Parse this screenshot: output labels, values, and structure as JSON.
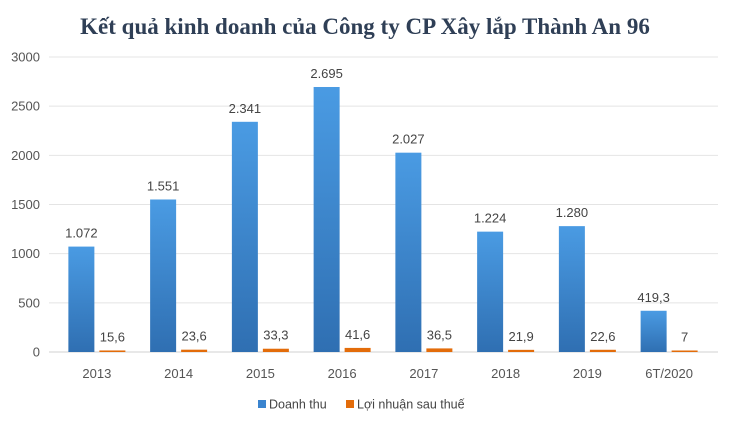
{
  "chart_data": {
    "type": "bar",
    "title": "Kết quả kinh doanh của Công ty CP Xây lắp Thành An 96",
    "xlabel": "",
    "ylabel": "",
    "ylim": [
      0,
      3000
    ],
    "yticks": [
      "0",
      "500",
      "1000",
      "1500",
      "2000",
      "2500",
      "3000"
    ],
    "grid": true,
    "legend_position": "bottom",
    "categories": [
      "2013",
      "2014",
      "2015",
      "2016",
      "2017",
      "2018",
      "2019",
      "6T/2020"
    ],
    "series": [
      {
        "name": "Doanh thu",
        "color": "#3a84cf",
        "values": [
          1072,
          1551,
          2341,
          2695,
          2027,
          1224,
          1280,
          419.3
        ],
        "labels": [
          "1.072",
          "1.551",
          "2.341",
          "2.695",
          "2.027",
          "1.224",
          "1.280",
          "419,3"
        ]
      },
      {
        "name": "Lợi nhuận sau thuế",
        "color": "#e36c0a",
        "values": [
          15.6,
          23.6,
          33.3,
          41.6,
          36.5,
          21.9,
          22.6,
          7
        ],
        "labels": [
          "15,6",
          "23,6",
          "33,3",
          "41,6",
          "36,5",
          "21,9",
          "22,6",
          "7"
        ]
      }
    ]
  }
}
